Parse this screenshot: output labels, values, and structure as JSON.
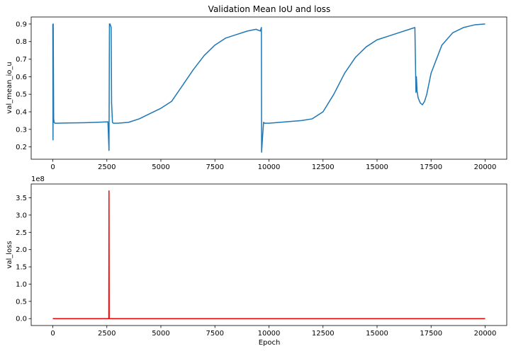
{
  "chart_data": [
    {
      "type": "line",
      "title": "Validation Mean IoU and loss",
      "xlabel": "",
      "ylabel": "val_mean_io_u",
      "xlim": [
        -1000,
        21000
      ],
      "ylim": [
        0.13,
        0.94
      ],
      "xticks": [
        0,
        2500,
        5000,
        7500,
        10000,
        12500,
        15000,
        17500,
        20000
      ],
      "xtick_labels": [
        "0",
        "2500",
        "5000",
        "7500",
        "10000",
        "12500",
        "15000",
        "17500",
        "20000"
      ],
      "yticks": [
        0.2,
        0.3,
        0.4,
        0.5,
        0.6,
        0.7,
        0.8,
        0.9
      ],
      "ytick_labels": [
        "0.2",
        "0.3",
        "0.4",
        "0.5",
        "0.6",
        "0.7",
        "0.8",
        "0.9"
      ],
      "grid": false,
      "color": "#1f77b4",
      "series": [
        {
          "x": [
            0,
            10,
            20,
            40,
            60,
            100,
            200,
            500,
            1000,
            1500,
            2000,
            2400,
            2550,
            2600,
            2620,
            2650,
            2700,
            2720,
            2760,
            2800,
            3000,
            3500,
            4000,
            4500,
            5000,
            5500,
            6000,
            6500,
            7000,
            7500,
            8000,
            8500,
            9000,
            9400,
            9600,
            9650,
            9660,
            9700,
            9750,
            9800,
            10000,
            10500,
            11000,
            11500,
            12000,
            12500,
            13000,
            13500,
            14000,
            14500,
            15000,
            15500,
            16000,
            16500,
            16750,
            16800,
            16820,
            16850,
            16900,
            17000,
            17100,
            17200,
            17300,
            17500,
            18000,
            18500,
            19000,
            19500,
            20000
          ],
          "y": [
            0.9,
            0.24,
            0.9,
            0.36,
            0.34,
            0.335,
            0.335,
            0.336,
            0.337,
            0.338,
            0.34,
            0.342,
            0.343,
            0.18,
            0.9,
            0.9,
            0.88,
            0.45,
            0.34,
            0.335,
            0.335,
            0.34,
            0.36,
            0.39,
            0.42,
            0.46,
            0.55,
            0.64,
            0.72,
            0.78,
            0.82,
            0.84,
            0.86,
            0.87,
            0.86,
            0.88,
            0.17,
            0.25,
            0.34,
            0.335,
            0.335,
            0.34,
            0.345,
            0.35,
            0.36,
            0.4,
            0.5,
            0.62,
            0.71,
            0.77,
            0.81,
            0.83,
            0.85,
            0.87,
            0.88,
            0.51,
            0.6,
            0.52,
            0.48,
            0.45,
            0.44,
            0.46,
            0.5,
            0.62,
            0.78,
            0.85,
            0.88,
            0.895,
            0.9
          ]
        }
      ]
    },
    {
      "type": "line",
      "title": "",
      "xlabel": "Epoch",
      "ylabel": "val_loss",
      "sci_offset": "1e8",
      "xlim": [
        -1000,
        21000
      ],
      "ylim": [
        -0.2,
        3.9
      ],
      "xticks": [
        0,
        2500,
        5000,
        7500,
        10000,
        12500,
        15000,
        17500,
        20000
      ],
      "xtick_labels": [
        "0",
        "2500",
        "5000",
        "7500",
        "10000",
        "12500",
        "15000",
        "17500",
        "20000"
      ],
      "yticks": [
        0.0,
        0.5,
        1.0,
        1.5,
        2.0,
        2.5,
        3.0,
        3.5
      ],
      "ytick_labels": [
        "0.0",
        "0.5",
        "1.0",
        "1.5",
        "2.0",
        "2.5",
        "3.0",
        "3.5"
      ],
      "grid": false,
      "color": "#ff0000",
      "series": [
        {
          "x": [
            0,
            2590,
            2600,
            2610,
            2620,
            5000,
            10000,
            15000,
            20000
          ],
          "y": [
            0.0,
            0.0,
            3.7,
            0.0,
            0.0,
            0.0,
            0.0,
            0.0,
            0.0
          ]
        }
      ]
    }
  ]
}
